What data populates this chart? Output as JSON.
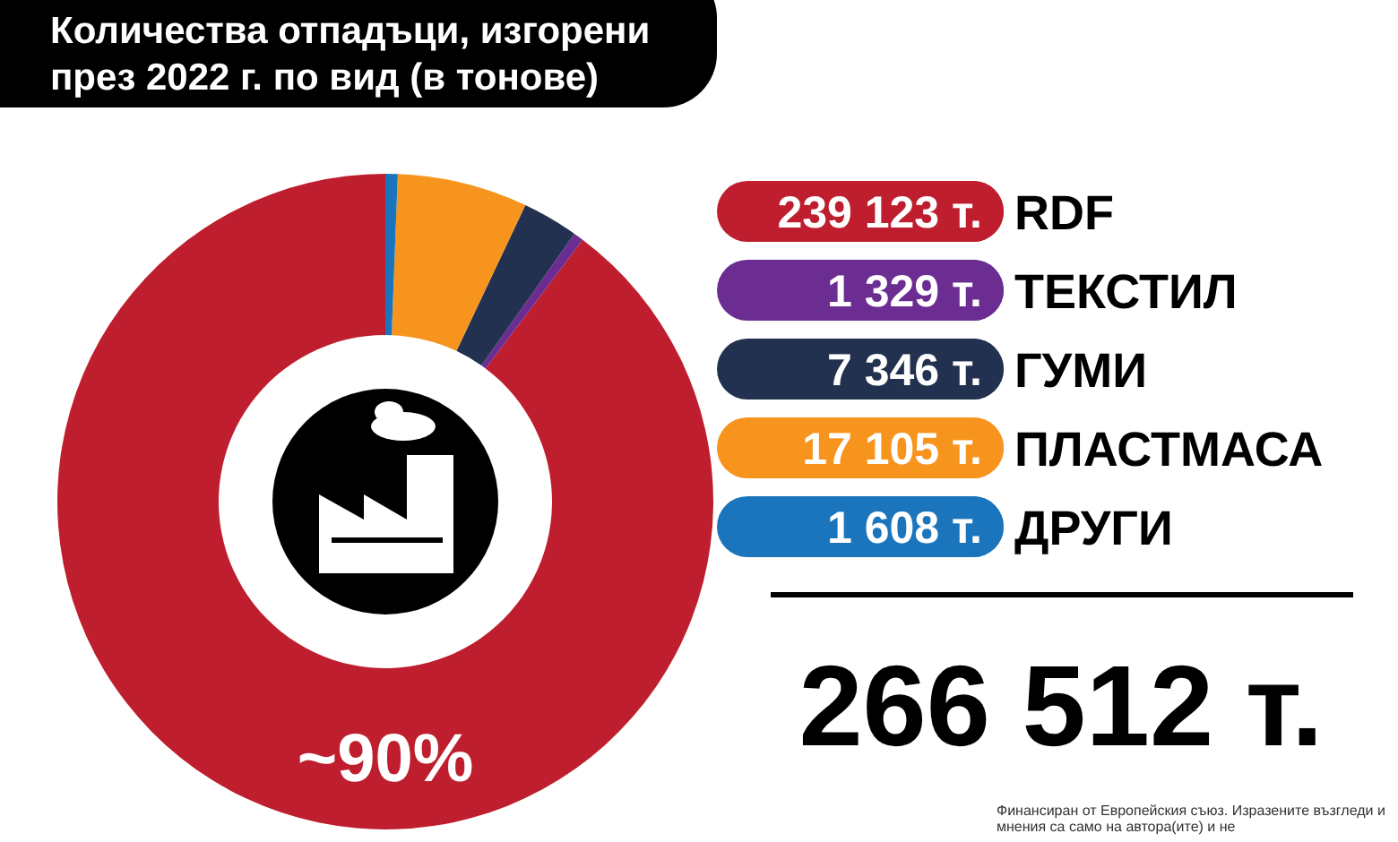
{
  "chart_data": {
    "type": "donut",
    "title": "Количества отпадъци, изгорени през 2022 г. по вид (в тонове)",
    "categories": [
      "RDF",
      "ТЕКСТИЛ",
      "ГУМИ",
      "ПЛАСТМАСА",
      "ДРУГИ"
    ],
    "values": [
      239123,
      1329,
      7346,
      17105,
      1608
    ],
    "value_labels": [
      "239 123 т.",
      "1 329 т.",
      "7 346 т.",
      "17 105 т.",
      "1 608 т."
    ],
    "colors": [
      "#be1e2d",
      "#6b2d91",
      "#22314f",
      "#f7941d",
      "#1b75bc"
    ],
    "legend": "right",
    "annotations": [
      "~90%",
      "266 512 т.",
      "Финансиран от Европейския съюз. Изразените възгледи и мнения са само на автора(ите) и не"
    ]
  }
}
